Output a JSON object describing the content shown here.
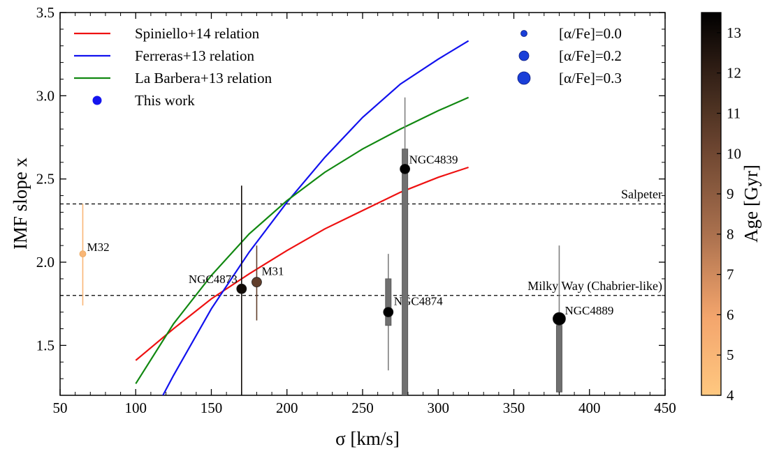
{
  "chart_data": {
    "type": "scatter",
    "xlabel": "σ [km/s]",
    "ylabel": "IMF slope x",
    "xlim": [
      50,
      450
    ],
    "ylim": [
      1.2,
      3.5
    ],
    "xticks": [
      "50",
      "100",
      "150",
      "200",
      "250",
      "300",
      "350",
      "400",
      "450"
    ],
    "yticks": [
      "1.5",
      "2.0",
      "2.5",
      "3.0",
      "3.5"
    ],
    "colorbar": {
      "label": "Age [Gyr]",
      "range": [
        4,
        13.5
      ],
      "ticks": [
        "4",
        "5",
        "6",
        "7",
        "8",
        "9",
        "10",
        "11",
        "12",
        "13"
      ]
    },
    "legend_lines": [
      {
        "label": "Spiniello+14 relation",
        "color": "#ee1111"
      },
      {
        "label": "Ferreras+13 relation",
        "color": "#1111ee"
      },
      {
        "label": "La Barbera+13 relation",
        "color": "#118811"
      },
      {
        "label": "This work",
        "color": "#1515ee"
      }
    ],
    "legend_alpha": [
      {
        "label": "[α/Fe]=0.0",
        "size": "small"
      },
      {
        "label": "[α/Fe]=0.2",
        "size": "medium"
      },
      {
        "label": "[α/Fe]=0.3",
        "size": "large"
      }
    ],
    "reference_lines": [
      {
        "label": "Salpeter",
        "y": 2.35
      },
      {
        "label": "Milky Way (Chabrier-like)",
        "y": 1.8
      }
    ],
    "relations": [
      {
        "name": "Spiniello+14 relation",
        "color": "#ee1111",
        "points": [
          [
            100,
            1.41
          ],
          [
            125,
            1.6
          ],
          [
            150,
            1.78
          ],
          [
            175,
            1.93
          ],
          [
            200,
            2.07
          ],
          [
            225,
            2.2
          ],
          [
            250,
            2.31
          ],
          [
            275,
            2.42
          ],
          [
            300,
            2.51
          ],
          [
            320,
            2.57
          ]
        ]
      },
      {
        "name": "Ferreras+13 relation",
        "color": "#1111ee",
        "points": [
          [
            118,
            1.2
          ],
          [
            125,
            1.32
          ],
          [
            150,
            1.72
          ],
          [
            175,
            2.06
          ],
          [
            200,
            2.36
          ],
          [
            225,
            2.63
          ],
          [
            250,
            2.87
          ],
          [
            275,
            3.07
          ],
          [
            300,
            3.22
          ],
          [
            320,
            3.33
          ]
        ]
      },
      {
        "name": "La Barbera+13 relation",
        "color": "#118811",
        "points": [
          [
            100,
            1.27
          ],
          [
            125,
            1.63
          ],
          [
            150,
            1.92
          ],
          [
            175,
            2.17
          ],
          [
            200,
            2.37
          ],
          [
            225,
            2.54
          ],
          [
            250,
            2.68
          ],
          [
            275,
            2.8
          ],
          [
            300,
            2.91
          ],
          [
            320,
            2.99
          ]
        ]
      }
    ],
    "galaxies": [
      {
        "name": "M32",
        "sigma": 65,
        "x": 2.05,
        "err": [
          1.74,
          2.35
        ],
        "box": null,
        "age": 5.0,
        "alpha": "0.0"
      },
      {
        "name": "NGC4873",
        "sigma": 170,
        "x": 1.84,
        "err": [
          1.2,
          2.46
        ],
        "box": null,
        "age": 13.0,
        "alpha": "0.2"
      },
      {
        "name": "M31",
        "sigma": 180,
        "x": 1.88,
        "err": [
          1.65,
          2.1
        ],
        "box": null,
        "age": 10.5,
        "alpha": "0.2"
      },
      {
        "name": "NGC4874",
        "sigma": 267,
        "x": 1.7,
        "err": [
          1.35,
          2.05
        ],
        "box": [
          1.62,
          1.9
        ],
        "age": 13.5,
        "alpha": "0.2"
      },
      {
        "name": "NGC4839",
        "sigma": 278,
        "x": 2.56,
        "err": [
          2.12,
          2.99
        ],
        "box": [
          1.2,
          2.68
        ],
        "age": 13.5,
        "alpha": "0.2"
      },
      {
        "name": "NGC4889",
        "sigma": 380,
        "x": 1.66,
        "err": [
          1.2,
          2.1
        ],
        "box": [
          1.22,
          1.62
        ],
        "age": 13.5,
        "alpha": "0.3"
      }
    ]
  }
}
